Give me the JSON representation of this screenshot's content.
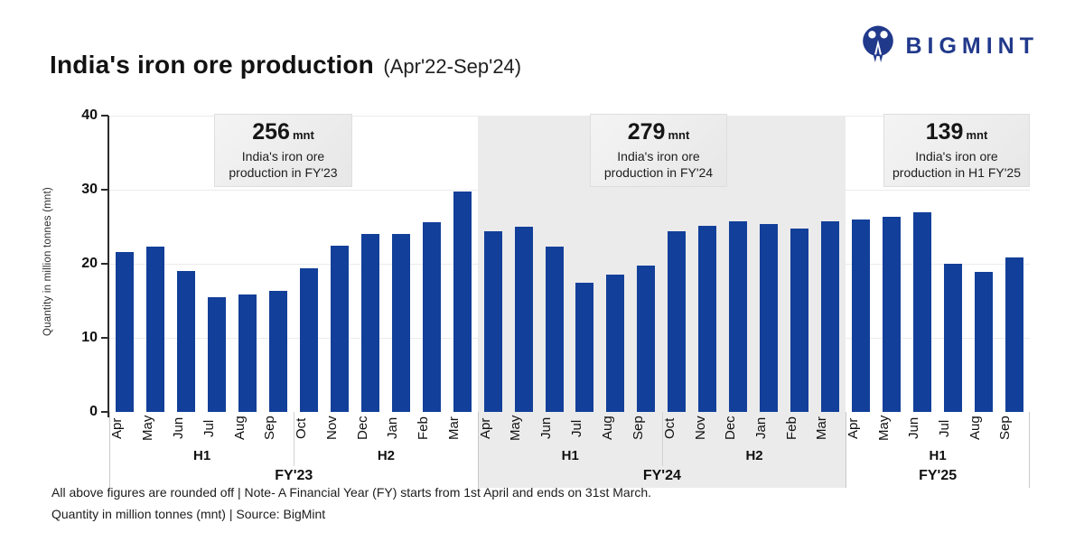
{
  "header": {
    "title": "India's iron ore production",
    "subtitle": "(Apr'22-Sep'24)",
    "brand": "BIGMINT",
    "brand_color": "#21398b"
  },
  "chart_data": {
    "type": "bar",
    "title": "India's iron ore production (Apr'22-Sep'24)",
    "ylabel": "Quantity in million tonnes (mnt)",
    "ylim": [
      0,
      40
    ],
    "yticks": [
      0,
      10,
      20,
      30,
      40
    ],
    "grid": "horizontal",
    "bar_color": "#123f99",
    "shaded_band_color": "#ebebeb",
    "groups": [
      {
        "fy": "FY'23",
        "shaded": false,
        "months": [
          "Apr",
          "May",
          "Jun",
          "Jul",
          "Aug",
          "Sep",
          "Oct",
          "Nov",
          "Dec",
          "Jan",
          "Feb",
          "Mar"
        ],
        "values": [
          21.6,
          22.3,
          19.0,
          15.5,
          15.8,
          16.3,
          19.4,
          22.5,
          24.0,
          24.0,
          25.6,
          29.8
        ],
        "halves": [
          {
            "label": "H1",
            "span": 6
          },
          {
            "label": "H2",
            "span": 6
          }
        ],
        "annotation": {
          "value": "256",
          "unit": "mnt",
          "desc1": "India's iron ore",
          "desc2": "production in FY'23"
        }
      },
      {
        "fy": "FY'24",
        "shaded": true,
        "months": [
          "Apr",
          "May",
          "Jun",
          "Jul",
          "Aug",
          "Sep",
          "Oct",
          "Nov",
          "Dec",
          "Jan",
          "Feb",
          "Mar"
        ],
        "values": [
          24.4,
          25.0,
          22.3,
          17.4,
          18.5,
          19.7,
          24.4,
          25.1,
          25.7,
          25.4,
          24.7,
          25.7
        ],
        "halves": [
          {
            "label": "H1",
            "span": 6
          },
          {
            "label": "H2",
            "span": 6
          }
        ],
        "annotation": {
          "value": "279",
          "unit": "mnt",
          "desc1": "India's iron ore",
          "desc2": "production in FY'24"
        }
      },
      {
        "fy": "FY'25",
        "shaded": false,
        "months": [
          "Apr",
          "May",
          "Jun",
          "Jul",
          "Aug",
          "Sep"
        ],
        "values": [
          26.0,
          26.3,
          26.9,
          20.0,
          18.9,
          20.9
        ],
        "halves": [
          {
            "label": "H1",
            "span": 6
          }
        ],
        "annotation": {
          "value": "139",
          "unit": "mnt",
          "desc1": "India's iron ore",
          "desc2": "production in H1 FY'25"
        }
      }
    ]
  },
  "footer": {
    "line1": "All above figures are rounded off | Note- A Financial Year (FY) starts from 1st April and ends on 31st March.",
    "line2": "Quantity in million tonnes (mnt) | Source: BigMint"
  }
}
